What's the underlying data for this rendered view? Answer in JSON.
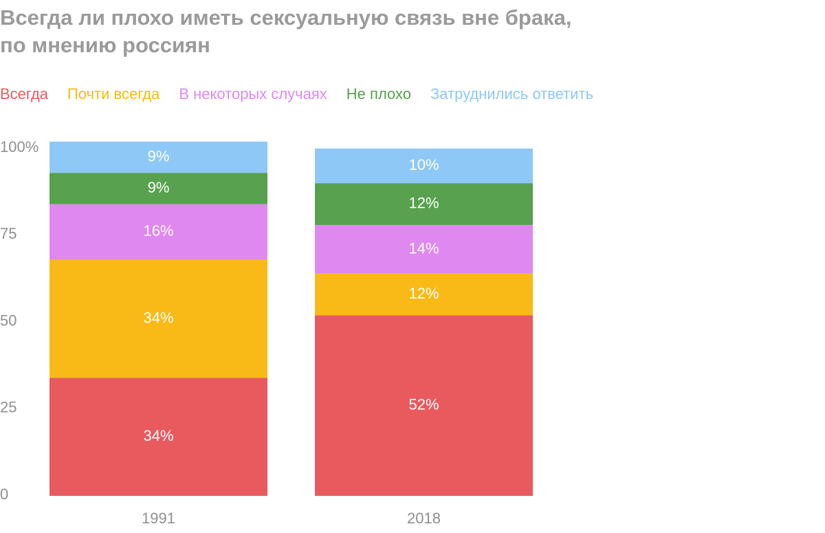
{
  "chart_data": {
    "type": "bar",
    "stacked": true,
    "title": "Всегда ли плохо иметь сексуальную связь вне брака, по мнению россиян",
    "title_lines": [
      "Всегда ли плохо иметь сексуальную связь вне брака,",
      "по мнению россиян"
    ],
    "categories": [
      "1991",
      "2018"
    ],
    "series": [
      {
        "name": "Всегда",
        "color": "#e85a5e",
        "values": [
          34,
          52
        ],
        "labels": [
          "34%",
          "52%"
        ]
      },
      {
        "name": "Почти всегда",
        "color": "#f9b917",
        "values": [
          34,
          12
        ],
        "labels": [
          "34%",
          "12%"
        ]
      },
      {
        "name": "В некоторых случаях",
        "color": "#df88f0",
        "values": [
          16,
          14
        ],
        "labels": [
          "16%",
          "14%"
        ]
      },
      {
        "name": "Не плохо",
        "color": "#58a14e",
        "values": [
          9,
          12
        ],
        "labels": [
          "9%",
          "12%"
        ]
      },
      {
        "name": "Затруднились ответить",
        "color": "#8ec8f7",
        "values": [
          9,
          10
        ],
        "labels": [
          "9%",
          "10%"
        ]
      }
    ],
    "y_ticks": [
      0,
      25,
      50,
      75,
      100
    ],
    "y_tick_labels": [
      "0",
      "25",
      "50",
      "75",
      "100%"
    ],
    "ylim": [
      0,
      100
    ],
    "xlabel": "",
    "ylabel": "",
    "grid": false,
    "legend_position": "top-left"
  }
}
